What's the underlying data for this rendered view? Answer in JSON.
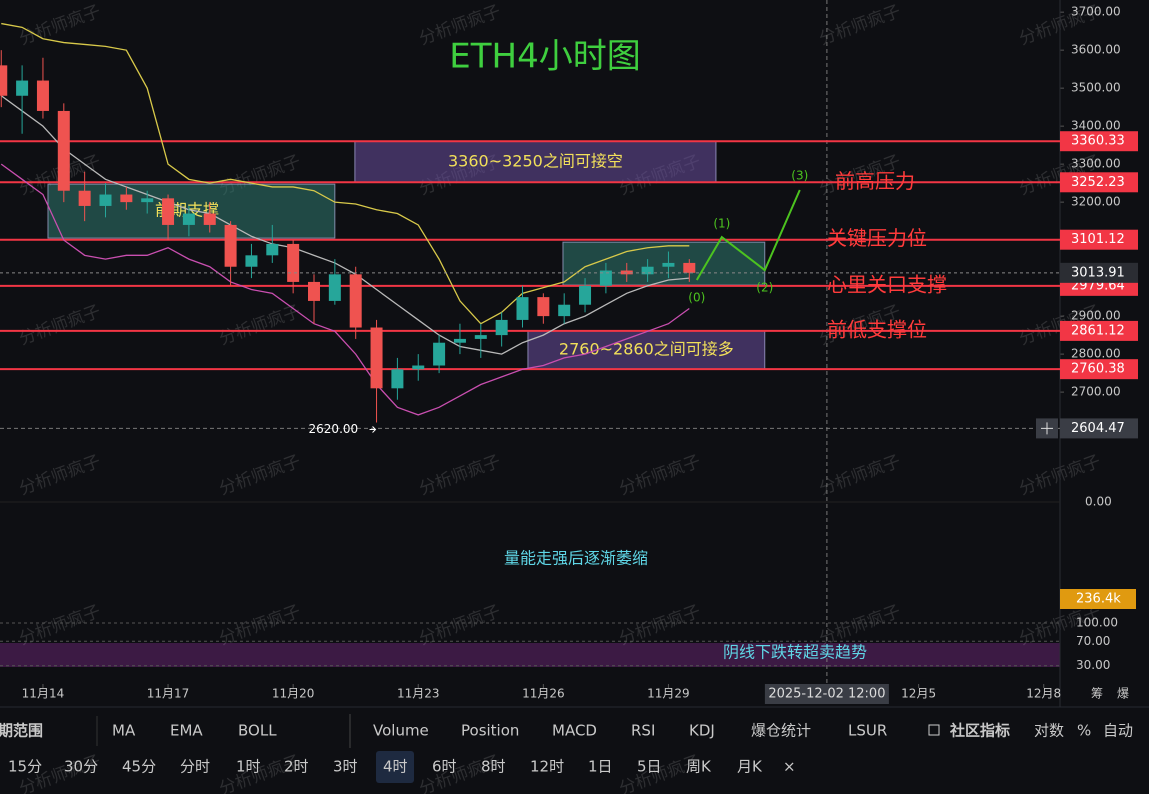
{
  "chart_data": {
    "type": "candlestick",
    "title": "ETH4小时图",
    "watermark": "分析师疯子",
    "x": [
      13,
      13.5,
      14,
      14.5,
      15,
      15.5,
      16,
      16.5,
      17,
      17.5,
      18,
      18.5,
      19,
      19.5,
      20,
      20.5,
      21,
      21.5,
      22,
      22.5,
      23,
      23.5,
      24,
      24.5,
      25,
      25.5,
      26,
      26.5,
      27,
      27.5,
      28,
      28.5,
      29,
      29.5
    ],
    "open": [
      3560,
      3480,
      3520,
      3440,
      3230,
      3190,
      3220,
      3200,
      3210,
      3140,
      3170,
      3140,
      3030,
      3060,
      3090,
      2990,
      2940,
      3010,
      2870,
      2710,
      2760,
      2770,
      2830,
      2840,
      2850,
      2890,
      2950,
      2900,
      2930,
      2980,
      3020,
      3010,
      3030,
      3040
    ],
    "high": [
      3600,
      3560,
      3580,
      3460,
      3280,
      3250,
      3240,
      3230,
      3220,
      3190,
      3200,
      3150,
      3090,
      3140,
      3100,
      3010,
      3050,
      3030,
      2890,
      2790,
      2800,
      2850,
      2880,
      2880,
      2910,
      2980,
      2960,
      2960,
      3000,
      3040,
      3040,
      3050,
      3070,
      3050
    ],
    "low": [
      3450,
      3380,
      3420,
      3200,
      3150,
      3160,
      3180,
      3170,
      3100,
      3110,
      3120,
      2980,
      3000,
      3040,
      2960,
      2880,
      2930,
      2840,
      2620,
      2680,
      2730,
      2750,
      2800,
      2790,
      2820,
      2870,
      2880,
      2880,
      2910,
      2960,
      2990,
      2990,
      3000,
      2990
    ],
    "close": [
      3480,
      3520,
      3440,
      3230,
      3190,
      3220,
      3200,
      3210,
      3140,
      3170,
      3140,
      3030,
      3060,
      3090,
      2990,
      2940,
      3010,
      2870,
      2710,
      2760,
      2770,
      2830,
      2840,
      2850,
      2890,
      2950,
      2900,
      2930,
      2980,
      3020,
      3010,
      3030,
      3040,
      3013.91
    ],
    "up_color": "#26a69a",
    "down_color": "#ef5350",
    "overlays": [
      {
        "color": "#d8c94a",
        "values": [
          3670,
          3660,
          3630,
          3620,
          3615,
          3610,
          3600,
          3500,
          3300,
          3260,
          3250,
          3260,
          3250,
          3240,
          3240,
          3230,
          3200,
          3195,
          3180,
          3170,
          3140,
          3050,
          2940,
          2880,
          2910,
          2960,
          2975,
          2990,
          3030,
          3050,
          3070,
          3080,
          3085,
          3085
        ]
      },
      {
        "color": "#b9b9b9",
        "values": [
          3480,
          3440,
          3400,
          3340,
          3300,
          3260,
          3240,
          3220,
          3200,
          3180,
          3170,
          3140,
          3110,
          3090,
          3080,
          3060,
          3040,
          3010,
          2970,
          2930,
          2890,
          2850,
          2820,
          2810,
          2800,
          2830,
          2850,
          2880,
          2900,
          2930,
          2960,
          2980,
          2995,
          3000
        ]
      },
      {
        "color": "#c94fb0",
        "values": [
          3300,
          3260,
          3220,
          3100,
          3060,
          3050,
          3060,
          3060,
          3080,
          3050,
          3030,
          2990,
          2970,
          2960,
          2920,
          2880,
          2860,
          2800,
          2720,
          2660,
          2640,
          2660,
          2690,
          2720,
          2740,
          2760,
          2770,
          2790,
          2800,
          2820,
          2840,
          2860,
          2880,
          2920
        ]
      }
    ],
    "xlim": [
      12.97,
      38.39
    ],
    "xticks": [
      {
        "value": 14,
        "label": "11月14"
      },
      {
        "value": 17,
        "label": "11月17"
      },
      {
        "value": 20,
        "label": "11月20"
      },
      {
        "value": 23,
        "label": "11月23"
      },
      {
        "value": 26,
        "label": "11月26"
      },
      {
        "value": 29,
        "label": "11月29"
      },
      {
        "value": 35,
        "label": "12月5"
      },
      {
        "value": 38,
        "label": "12月8"
      }
    ],
    "ylim": [
      2495,
      3732
    ],
    "yticks": [
      {
        "value": 3700,
        "label": "3700.00"
      },
      {
        "value": 3600,
        "label": "3600.00"
      },
      {
        "value": 3500,
        "label": "3500.00"
      },
      {
        "value": 3400,
        "label": "3400.00"
      },
      {
        "value": 3300,
        "label": "3300.00"
      },
      {
        "value": 3200,
        "label": "3200.00"
      },
      {
        "value": 2900,
        "label": "2900.00"
      },
      {
        "value": 2800,
        "label": "2800.00"
      },
      {
        "value": 2700,
        "label": "2700.00"
      }
    ],
    "levels": [
      3360.33,
      3252.23,
      3101.12,
      2979.64,
      2861.12,
      2760.38
    ],
    "level_notes": [
      null,
      "前高压力",
      "关键压力位",
      "心里关口支撑",
      "前低支撑位",
      null
    ],
    "level_color": "#f23645",
    "last_price": 3013.91,
    "cursor_price": 2604.47,
    "cursor_x": {
      "value": 32.8,
      "label": "2025-12-02 12:00"
    },
    "low_label": {
      "x": 22,
      "value": 2620,
      "label": "2620.00"
    },
    "zones": [
      {
        "label": "3360~3250之间可接空",
        "x": [
          21.48,
          30.14
        ],
        "y": [
          3360.33,
          3252.23
        ],
        "color": "#6a4f9e"
      },
      {
        "label": "前期支撑",
        "x": [
          14.12,
          21.0
        ],
        "y": [
          3247.4,
          3105.3
        ],
        "color": "#2f7a70"
      },
      {
        "label": "2760~2860之间可接多",
        "x": [
          25.63,
          31.31
        ],
        "y": [
          2861.12,
          2760.38
        ],
        "color": "#6a4f9e"
      },
      {
        "label": null,
        "x": [
          26.47,
          31.31
        ],
        "y": [
          3094.7,
          2981.6
        ],
        "color": "#2f7a70"
      }
    ],
    "projection": {
      "x": [
        29.68,
        30.28,
        31.31,
        32.15
      ],
      "values": [
        2995,
        3108,
        3021,
        3232
      ],
      "labels": [
        "(0)",
        "(1)",
        "(2)",
        "(3)"
      ],
      "color": "#4cc31f"
    },
    "macd_tick": {
      "value": 0,
      "label": "0.00"
    },
    "volume_label": "236.4k",
    "volume_note": "量能走强后逐渐萎缩",
    "rsi_ticks": [
      {
        "value": 100,
        "label": "100.00"
      },
      {
        "value": 70,
        "label": "70.00"
      },
      {
        "value": 30,
        "label": "30.00"
      }
    ],
    "rsi_ylim": [
      15,
      113
    ],
    "rsi_note": "阴线下跌转超卖趋势",
    "axis_icons": [
      "筹",
      "爆"
    ]
  },
  "toolbar": {
    "indicators": [
      "期范围",
      "MA",
      "EMA",
      "BOLL",
      "Volume",
      "Position",
      "MACD",
      "RSI",
      "KDJ",
      "爆仓统计",
      "LSUR"
    ],
    "active_indicators": [
      3,
      4,
      6,
      7
    ],
    "right": [
      "社区指标",
      "对数",
      "%",
      "自动"
    ],
    "intervals": [
      "15分",
      "30分",
      "45分",
      "分时",
      "1时",
      "2时",
      "3时",
      "4时",
      "6时",
      "8时",
      "12时",
      "1日",
      "5日",
      "周K",
      "月K"
    ],
    "active_interval": 7,
    "close": "×"
  }
}
